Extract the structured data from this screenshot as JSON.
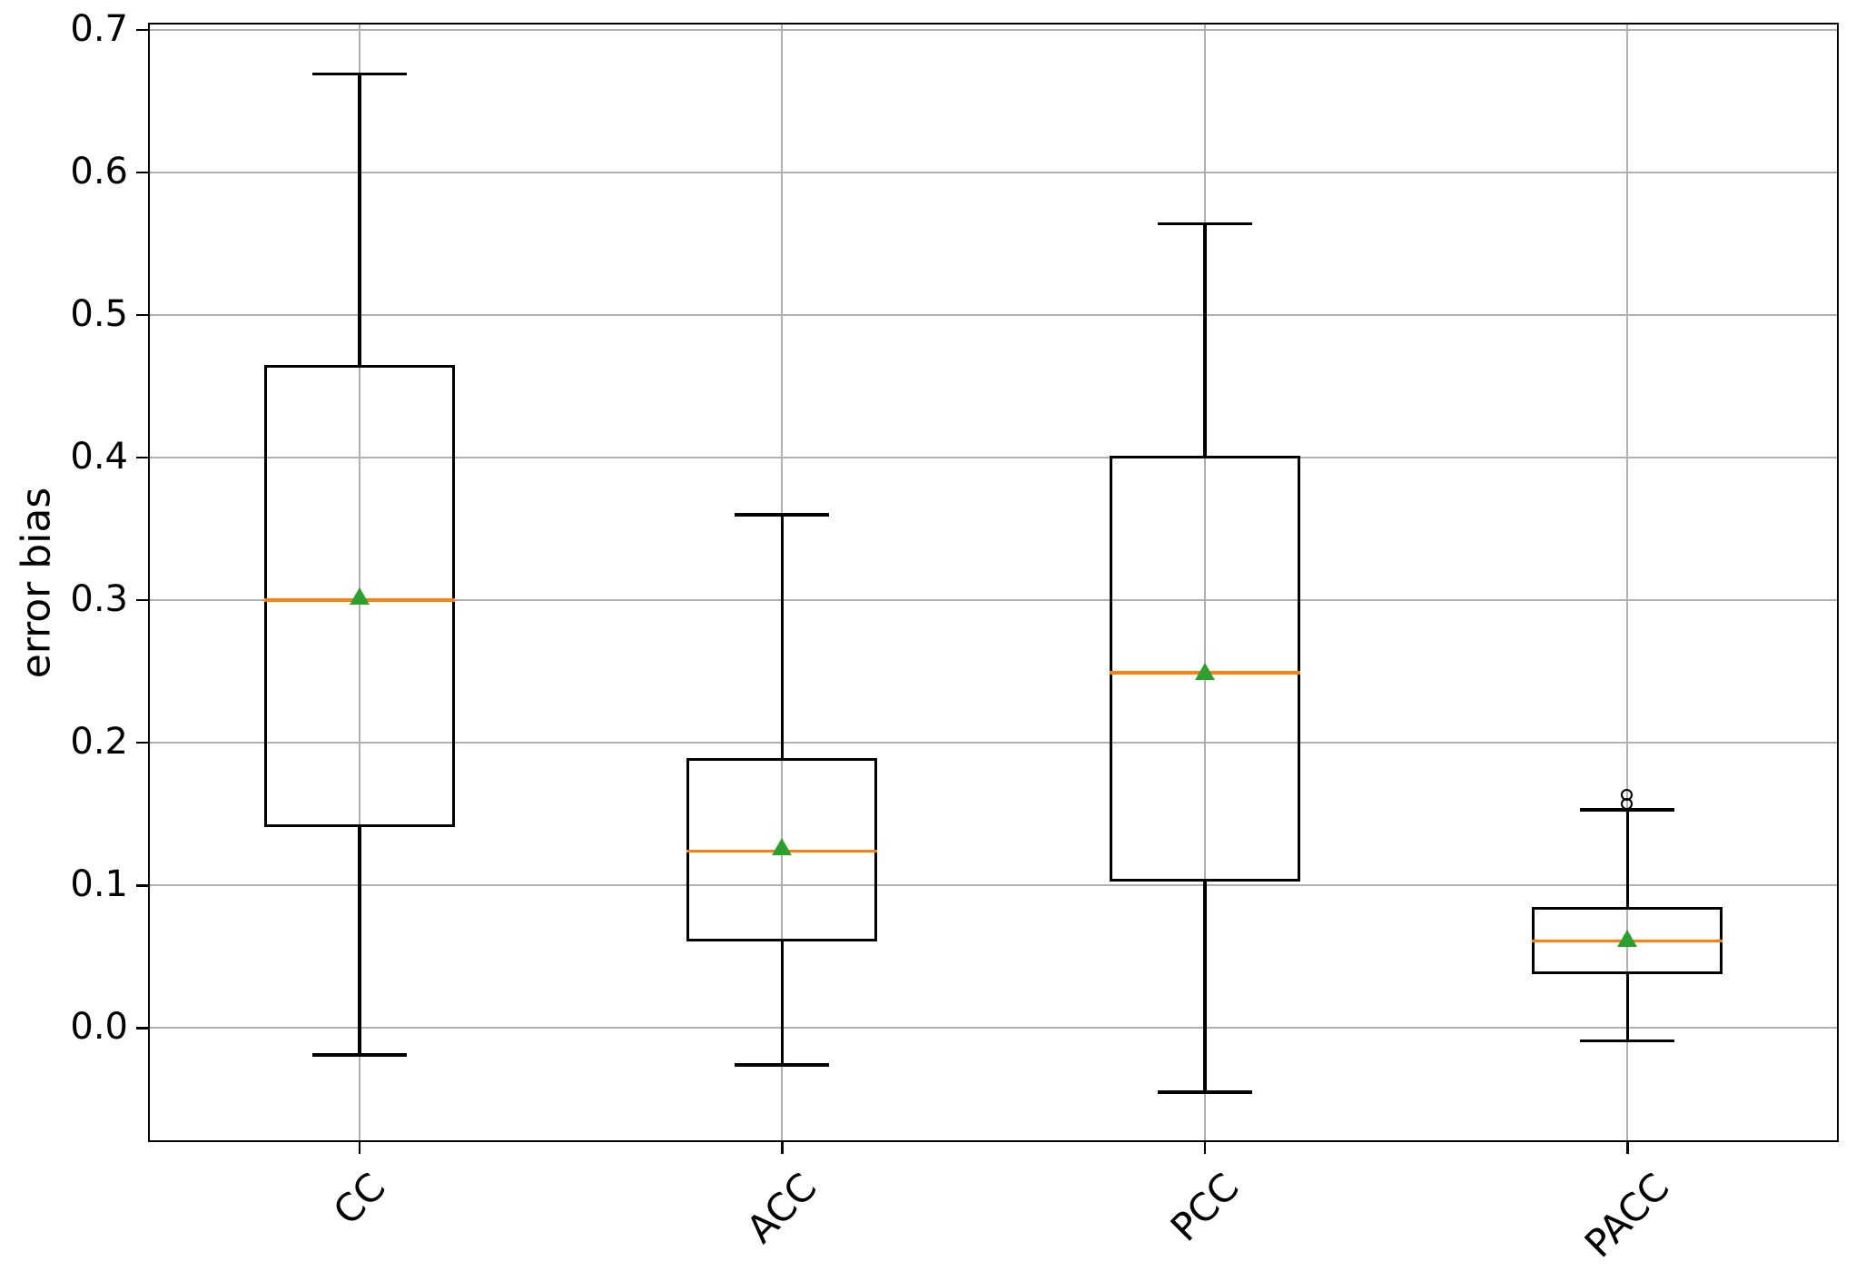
{
  "chart_data": {
    "type": "boxplot",
    "title": "",
    "xlabel": "",
    "ylabel": "error bias",
    "categories": [
      "CC",
      "ACC",
      "PCC",
      "PACC"
    ],
    "series": [
      {
        "name": "CC",
        "whisker_low": -0.019,
        "q1": 0.141,
        "median": 0.3,
        "mean": 0.303,
        "q3": 0.465,
        "whisker_high": 0.669,
        "outliers": []
      },
      {
        "name": "ACC",
        "whisker_low": -0.026,
        "q1": 0.061,
        "median": 0.124,
        "mean": 0.127,
        "q3": 0.189,
        "whisker_high": 0.36,
        "outliers": []
      },
      {
        "name": "PCC",
        "whisker_low": -0.045,
        "q1": 0.103,
        "median": 0.249,
        "mean": 0.25,
        "q3": 0.401,
        "whisker_high": 0.564,
        "outliers": []
      },
      {
        "name": "PACC",
        "whisker_low": -0.009,
        "q1": 0.038,
        "median": 0.061,
        "mean": 0.063,
        "q3": 0.085,
        "whisker_high": 0.153,
        "outliers": [
          0.157,
          0.163
        ]
      }
    ],
    "positions": [
      1,
      2,
      3,
      4
    ],
    "xlim": [
      0.5,
      4.5
    ],
    "ylim": [
      -0.08,
      0.705
    ],
    "yticks": {
      "values": [
        0.0,
        0.1,
        0.2,
        0.3,
        0.4,
        0.5,
        0.6,
        0.7
      ],
      "labels": [
        "0.0",
        "0.1",
        "0.2",
        "0.3",
        "0.4",
        "0.5",
        "0.6",
        "0.7"
      ]
    },
    "xtick_rotation_deg": 45,
    "grid": true,
    "legend": null,
    "mean_marker_shape": "triangle-up",
    "outlier_marker_shape": "circle",
    "colors": {
      "box_line": "#000000",
      "median_line": "#ff7f0e",
      "mean_marker": "#2ca02c",
      "grid_line": "#b0b0b0",
      "spine": "#000000",
      "text": "#000000",
      "background": "#ffffff"
    }
  }
}
